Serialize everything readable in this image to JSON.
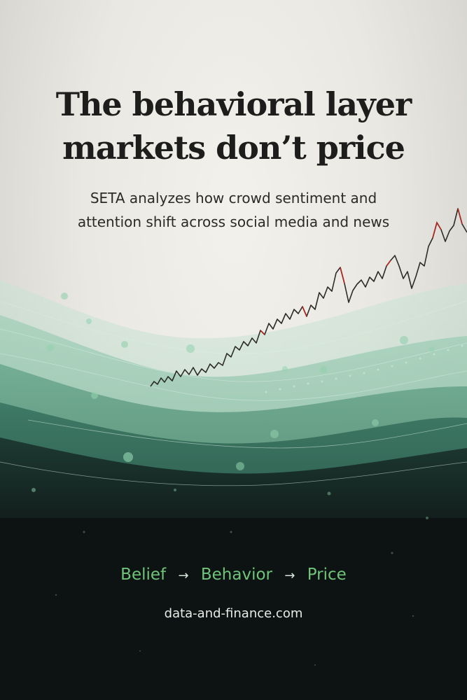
{
  "headline": {
    "line1": "The behavioral layer",
    "line2": "markets don’t price"
  },
  "subtitle": "SETA analyzes how crowd sentiment and attention shift across social media and news",
  "tagline": {
    "step1": "Belief",
    "step2": "Behavior",
    "step3": "Price",
    "arrow": "→"
  },
  "website": "data-and-finance.com",
  "colors": {
    "paper": "#eceae4",
    "headline": "#1d1d1b",
    "wave_light": "#a9d2bd",
    "wave_mid": "#4f8f78",
    "wave_dark": "#1a3d33",
    "ink": "#0d1312",
    "tagline": "#6fc47a",
    "price_up": "#2c2c28",
    "price_down": "#b3261e"
  }
}
